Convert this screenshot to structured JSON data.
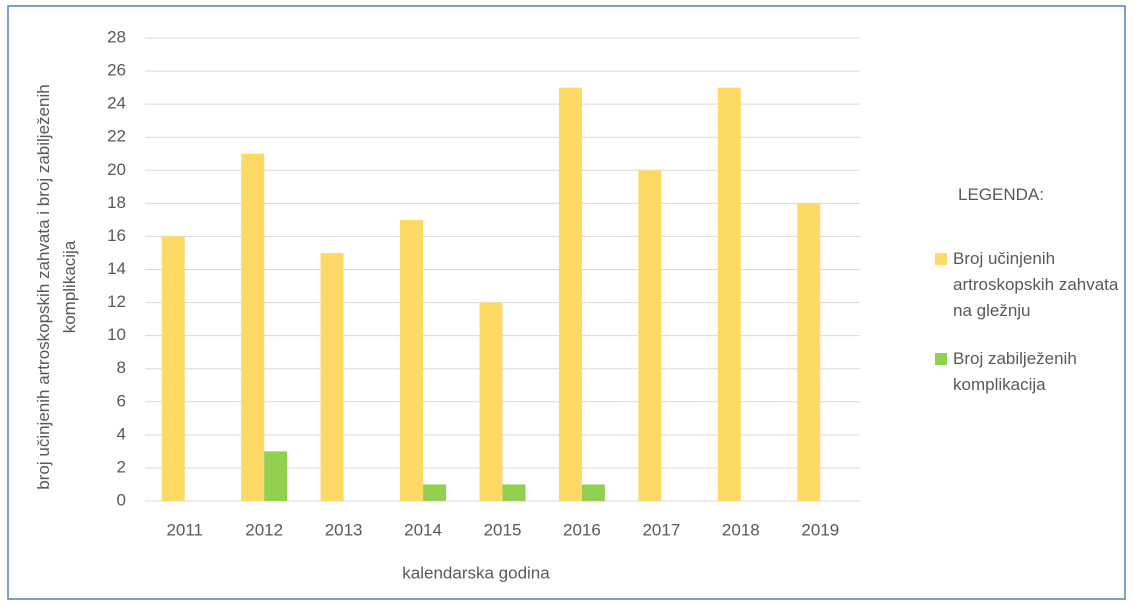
{
  "chart_data": {
    "type": "bar",
    "y_label": "broj učinjenih artroskopskih zahvata i broj zabilježenih komplikacija",
    "x_label": "kalendarska godina",
    "legend_title": "LEGENDA:",
    "categories": [
      "2011",
      "2012",
      "2013",
      "2014",
      "2015",
      "2016",
      "2017",
      "2018",
      "2019"
    ],
    "series": [
      {
        "name": "Broj učinjenih artroskopskih zahvata na gležnju",
        "color": "#ffd966",
        "values": [
          16,
          21,
          15,
          17,
          12,
          25,
          20,
          25,
          18
        ]
      },
      {
        "name": "Broj zabilježenih komplikacija",
        "color": "#92d050",
        "values": [
          0,
          3,
          0,
          1,
          1,
          1,
          0,
          0,
          0
        ]
      }
    ],
    "ylim": [
      0,
      28
    ],
    "yticks": [
      0,
      2,
      4,
      6,
      8,
      10,
      12,
      14,
      16,
      18,
      20,
      22,
      24,
      26,
      28
    ],
    "grid": true,
    "legend": "right"
  }
}
